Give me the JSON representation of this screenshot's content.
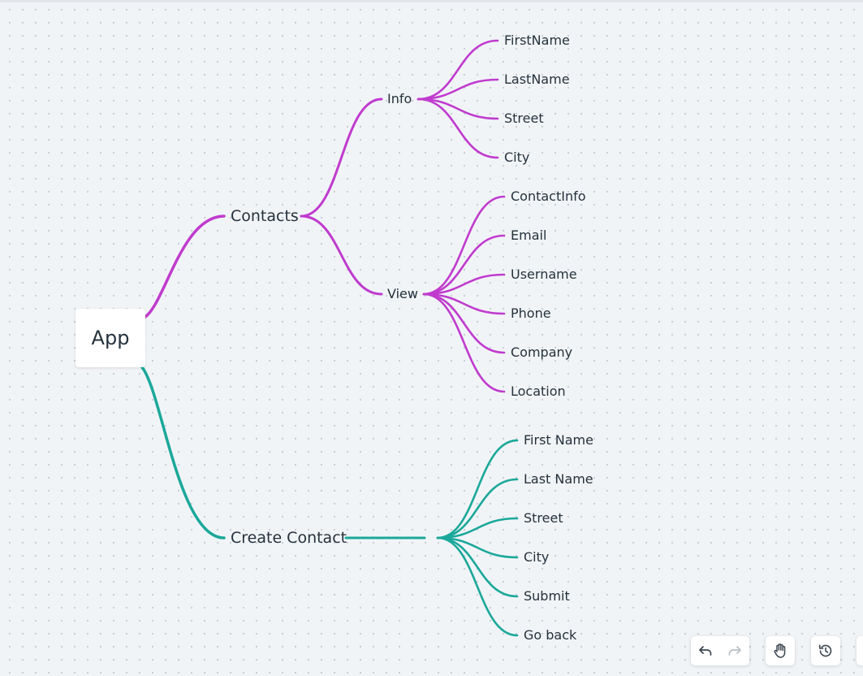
{
  "mindmap": {
    "root": {
      "label": "App"
    },
    "branches": [
      {
        "label": "Contacts",
        "color": "#c03bce",
        "children": [
          {
            "label": "Info",
            "children": [
              "FirstName",
              "LastName",
              "Street",
              "City"
            ]
          },
          {
            "label": "View",
            "children": [
              "ContactInfo",
              "Email",
              "Username",
              "Phone",
              "Company",
              "Location"
            ]
          }
        ]
      },
      {
        "label": "Create Contact",
        "color": "#1ba89a",
        "children": [
          {
            "label": "",
            "children": [
              "First Name",
              "Last Name",
              "Street",
              "City",
              "Submit",
              "Go back"
            ]
          }
        ]
      }
    ]
  },
  "toolbar": {
    "undo_icon": "undo-icon",
    "redo_icon": "redo-icon",
    "hand_icon": "hand-icon",
    "history_icon": "history-icon"
  }
}
